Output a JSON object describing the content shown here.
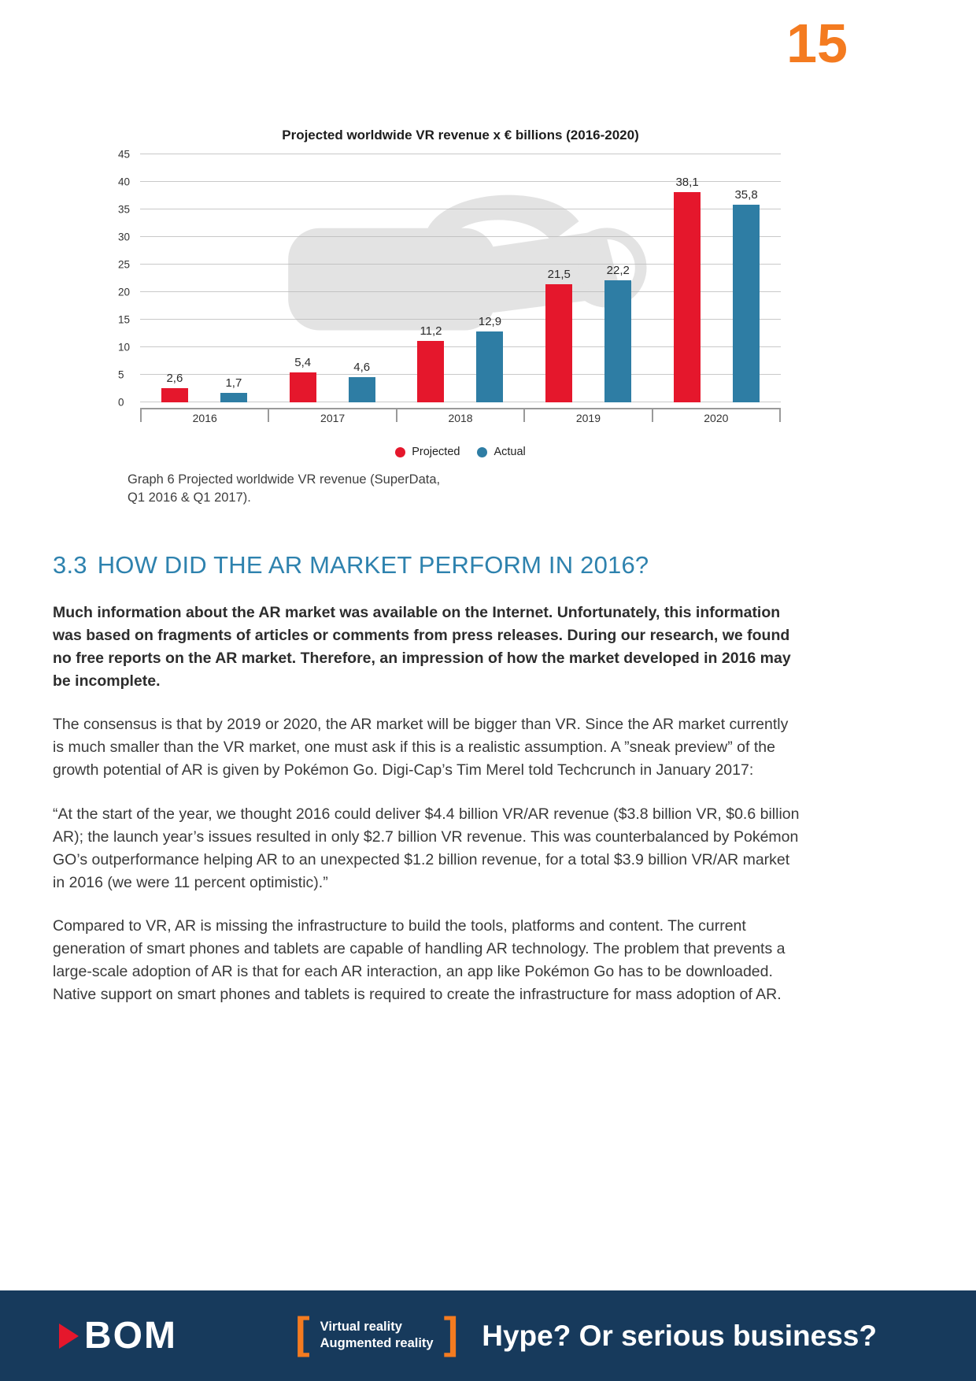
{
  "page": {
    "number": "15"
  },
  "colors": {
    "accent_orange": "#F47B20",
    "heading_blue": "#2E82AE",
    "footer_navy": "#173A5C",
    "projected_red": "#E5172C",
    "actual_blue": "#2E7DA4"
  },
  "chart": {
    "title": "Projected worldwide VR revenue  x € billions (2016-2020)",
    "caption_line1": "Graph 6 Projected worldwide VR revenue (SuperData,",
    "caption_line2": "Q1 2016 & Q1 2017)."
  },
  "chart_data": {
    "type": "bar",
    "title": "Projected worldwide VR revenue  x € billions (2016-2020)",
    "categories": [
      "2016",
      "2017",
      "2018",
      "2019",
      "2020"
    ],
    "series": [
      {
        "name": "Projected",
        "color": "#E5172C",
        "values": [
          2.6,
          5.4,
          11.2,
          21.5,
          38.1
        ],
        "labels": [
          "2,6",
          "5,4",
          "11,2",
          "21,5",
          "38,1"
        ]
      },
      {
        "name": "Actual",
        "color": "#2E7DA4",
        "values": [
          1.7,
          4.6,
          12.9,
          22.2,
          35.8
        ],
        "labels": [
          "1,7",
          "4,6",
          "12,9",
          "22,2",
          "35,8"
        ]
      }
    ],
    "xlabel": "",
    "ylabel": "",
    "ylim": [
      0,
      45
    ],
    "ytick_step": 5,
    "grid": true,
    "legend_position": "bottom"
  },
  "section": {
    "number": "3.3",
    "title": "HOW DID THE AR MARKET PERFORM IN 2016?"
  },
  "paragraphs": {
    "lead": "Much information about the AR market was available on the Internet. Unfortunately, this information was based on fragments of articles or comments from press releases. During our research, we found no free reports on the AR market. Therefore, an impression of how the market developed in 2016 may be incomplete.",
    "p1": "The consensus is that by 2019 or 2020, the AR market will be bigger than VR. Since the AR market currently is much smaller than the VR market, one must ask if this is a realistic assumption. A ”sneak preview” of the growth potential of AR is given by Pokémon Go. Digi-Cap’s Tim Merel told Techcrunch in January 2017:",
    "p2": "“At the start of the year, we thought 2016 could deliver $4.4 billion VR/AR revenue ($3.8 billion VR, $0.6 billion AR); the launch year’s issues resulted in only $2.7 billion VR revenue. This was counterbalanced by Pokémon GO’s outperformance helping AR to an unexpected $1.2 billion revenue, for a total $3.9 billion VR/AR market in 2016 (we were 11 percent optimistic).”",
    "p3": "Compared to VR, AR is missing the infrastructure to build the tools, platforms and content. The current generation of smart phones and tablets are capable of handling AR technology. The problem that prevents a large-scale adoption of AR is that for each AR interaction, an app like Pokémon Go has to be downloaded. Native support on smart phones and tablets is required to create the infrastructure for mass adoption of AR."
  },
  "footer": {
    "logo_text": "BOM",
    "bracket_left": "[",
    "bracket_right": "]",
    "tagline_line1": "Virtual reality",
    "tagline_line2": "Augmented reality",
    "headline": "Hype? Or serious business?"
  }
}
